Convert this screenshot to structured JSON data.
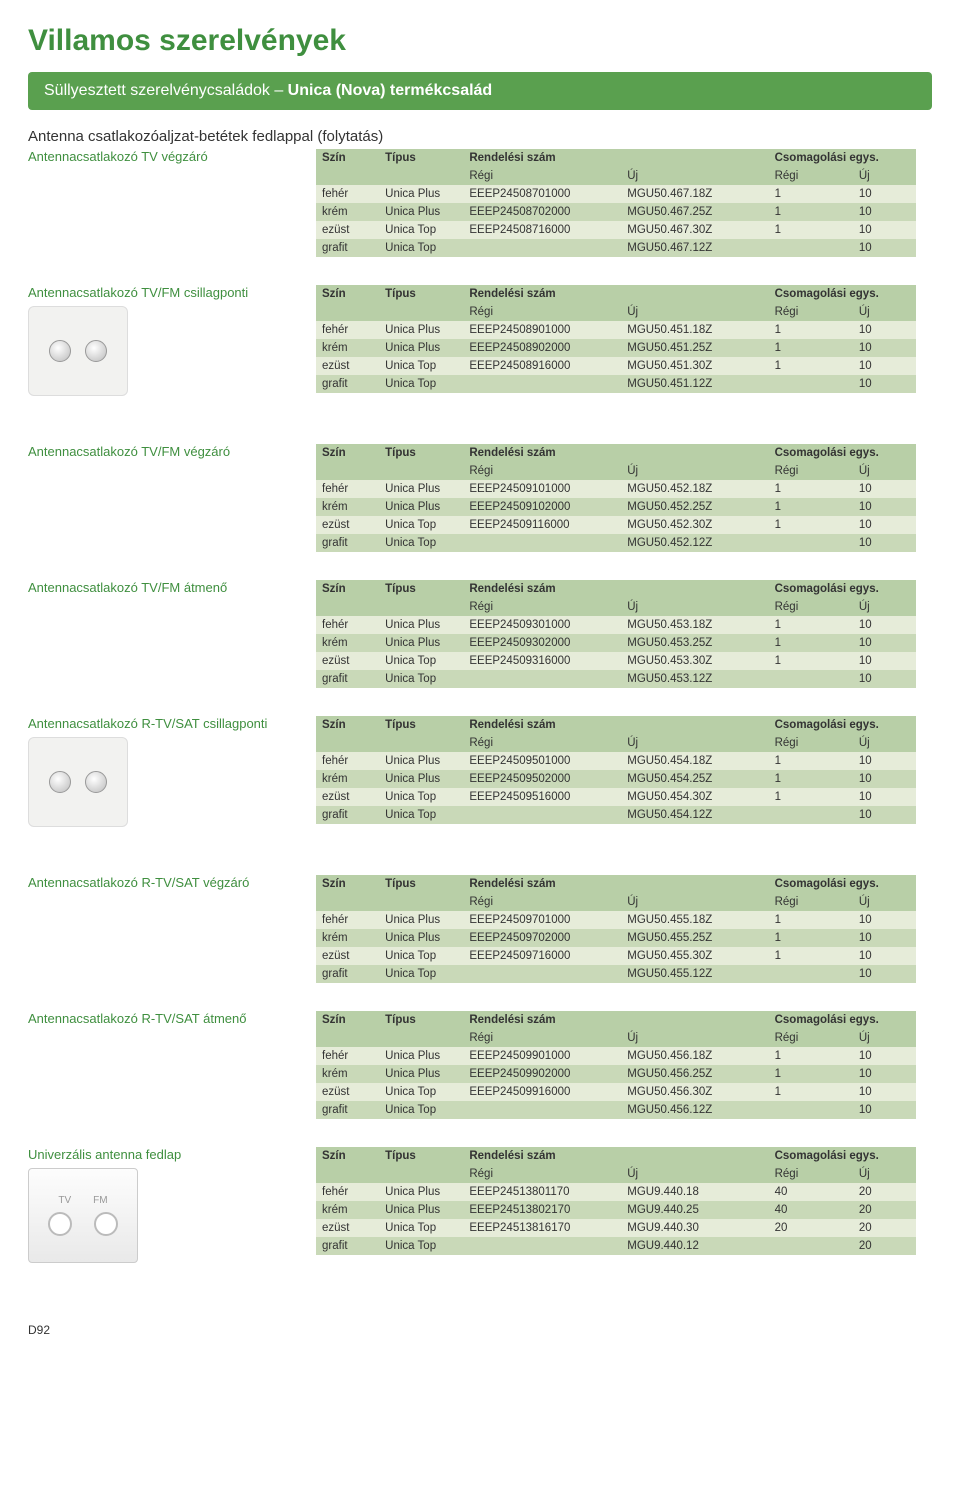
{
  "colors": {
    "title": "#3f8f3f",
    "banner_bg": "#5aa04f",
    "banner_text": "#ffffff",
    "subtitle": "#333333",
    "section_title": "#3f8f3f",
    "header_bg": "#b8cfa7",
    "row_even_bg": "#e6ecd9",
    "row_odd_bg": "#c9d9b8",
    "text": "#333333"
  },
  "page_title": "Villamos szerelvények",
  "banner_prefix": "Süllyesztett szerelvénycsaládok – ",
  "banner_bold": "Unica (Nova) termékcsalád",
  "subtitle": "Antenna csatlakozóaljzat-betétek fedlappal (folytatás)",
  "headers": {
    "szin": "Szín",
    "tipus": "Típus",
    "rendelesi": "Rendelési szám",
    "csom": "Csomagolási egys.",
    "regi": "Régi",
    "uj": "Új"
  },
  "sections": [
    {
      "title": "Antennacsatlakozó TV végzáró",
      "image": null,
      "rows": [
        [
          "fehér",
          "Unica Plus",
          "EEEP24508701000",
          "MGU50.467.18Z",
          "1",
          "10"
        ],
        [
          "krém",
          "Unica Plus",
          "EEEP24508702000",
          "MGU50.467.25Z",
          "1",
          "10"
        ],
        [
          "ezüst",
          "Unica Top",
          "EEEP24508716000",
          "MGU50.467.30Z",
          "1",
          "10"
        ],
        [
          "grafit",
          "Unica Top",
          "",
          "MGU50.467.12Z",
          "",
          "10"
        ]
      ]
    },
    {
      "title": "Antennacsatlakozó TV/FM csillagponti",
      "image": "socket",
      "rows": [
        [
          "fehér",
          "Unica Plus",
          "EEEP24508901000",
          "MGU50.451.18Z",
          "1",
          "10"
        ],
        [
          "krém",
          "Unica Plus",
          "EEEP24508902000",
          "MGU50.451.25Z",
          "1",
          "10"
        ],
        [
          "ezüst",
          "Unica Top",
          "EEEP24508916000",
          "MGU50.451.30Z",
          "1",
          "10"
        ],
        [
          "grafit",
          "Unica Top",
          "",
          "MGU50.451.12Z",
          "",
          "10"
        ]
      ]
    },
    {
      "title": "Antennacsatlakozó TV/FM végzáró",
      "image": null,
      "rows": [
        [
          "fehér",
          "Unica Plus",
          "EEEP24509101000",
          "MGU50.452.18Z",
          "1",
          "10"
        ],
        [
          "krém",
          "Unica Plus",
          "EEEP24509102000",
          "MGU50.452.25Z",
          "1",
          "10"
        ],
        [
          "ezüst",
          "Unica Top",
          "EEEP24509116000",
          "MGU50.452.30Z",
          "1",
          "10"
        ],
        [
          "grafit",
          "Unica Top",
          "",
          "MGU50.452.12Z",
          "",
          "10"
        ]
      ]
    },
    {
      "title": "Antennacsatlakozó TV/FM átmenő",
      "image": null,
      "rows": [
        [
          "fehér",
          "Unica Plus",
          "EEEP24509301000",
          "MGU50.453.18Z",
          "1",
          "10"
        ],
        [
          "krém",
          "Unica Plus",
          "EEEP24509302000",
          "MGU50.453.25Z",
          "1",
          "10"
        ],
        [
          "ezüst",
          "Unica Top",
          "EEEP24509316000",
          "MGU50.453.30Z",
          "1",
          "10"
        ],
        [
          "grafit",
          "Unica Top",
          "",
          "MGU50.453.12Z",
          "",
          "10"
        ]
      ]
    },
    {
      "title": "Antennacsatlakozó R-TV/SAT csillagponti",
      "image": "socket",
      "rows": [
        [
          "fehér",
          "Unica Plus",
          "EEEP24509501000",
          "MGU50.454.18Z",
          "1",
          "10"
        ],
        [
          "krém",
          "Unica Plus",
          "EEEP24509502000",
          "MGU50.454.25Z",
          "1",
          "10"
        ],
        [
          "ezüst",
          "Unica Top",
          "EEEP24509516000",
          "MGU50.454.30Z",
          "1",
          "10"
        ],
        [
          "grafit",
          "Unica Top",
          "",
          "MGU50.454.12Z",
          "",
          "10"
        ]
      ]
    },
    {
      "title": "Antennacsatlakozó R-TV/SAT végzáró",
      "image": null,
      "rows": [
        [
          "fehér",
          "Unica Plus",
          "EEEP24509701000",
          "MGU50.455.18Z",
          "1",
          "10"
        ],
        [
          "krém",
          "Unica Plus",
          "EEEP24509702000",
          "MGU50.455.25Z",
          "1",
          "10"
        ],
        [
          "ezüst",
          "Unica Top",
          "EEEP24509716000",
          "MGU50.455.30Z",
          "1",
          "10"
        ],
        [
          "grafit",
          "Unica Top",
          "",
          "MGU50.455.12Z",
          "",
          "10"
        ]
      ]
    },
    {
      "title": "Antennacsatlakozó R-TV/SAT átmenő",
      "image": null,
      "rows": [
        [
          "fehér",
          "Unica Plus",
          "EEEP24509901000",
          "MGU50.456.18Z",
          "1",
          "10"
        ],
        [
          "krém",
          "Unica Plus",
          "EEEP24509902000",
          "MGU50.456.25Z",
          "1",
          "10"
        ],
        [
          "ezüst",
          "Unica Top",
          "EEEP24509916000",
          "MGU50.456.30Z",
          "1",
          "10"
        ],
        [
          "grafit",
          "Unica Top",
          "",
          "MGU50.456.12Z",
          "",
          "10"
        ]
      ]
    },
    {
      "title": "Univerzális antenna fedlap",
      "image": "faceplate",
      "faceplate_labels": [
        "TV",
        "FM"
      ],
      "rows": [
        [
          "fehér",
          "Unica Plus",
          "EEEP24513801170",
          "MGU9.440.18",
          "40",
          "20"
        ],
        [
          "krém",
          "Unica Plus",
          "EEEP24513802170",
          "MGU9.440.25",
          "40",
          "20"
        ],
        [
          "ezüst",
          "Unica Top",
          "EEEP24513816170",
          "MGU9.440.30",
          "20",
          "20"
        ],
        [
          "grafit",
          "Unica Top",
          "",
          "MGU9.440.12",
          "",
          "20"
        ]
      ]
    }
  ],
  "page_number": "D92",
  "col_widths": [
    "60px",
    "80px",
    "150px",
    "140px",
    "80px",
    "60px"
  ]
}
